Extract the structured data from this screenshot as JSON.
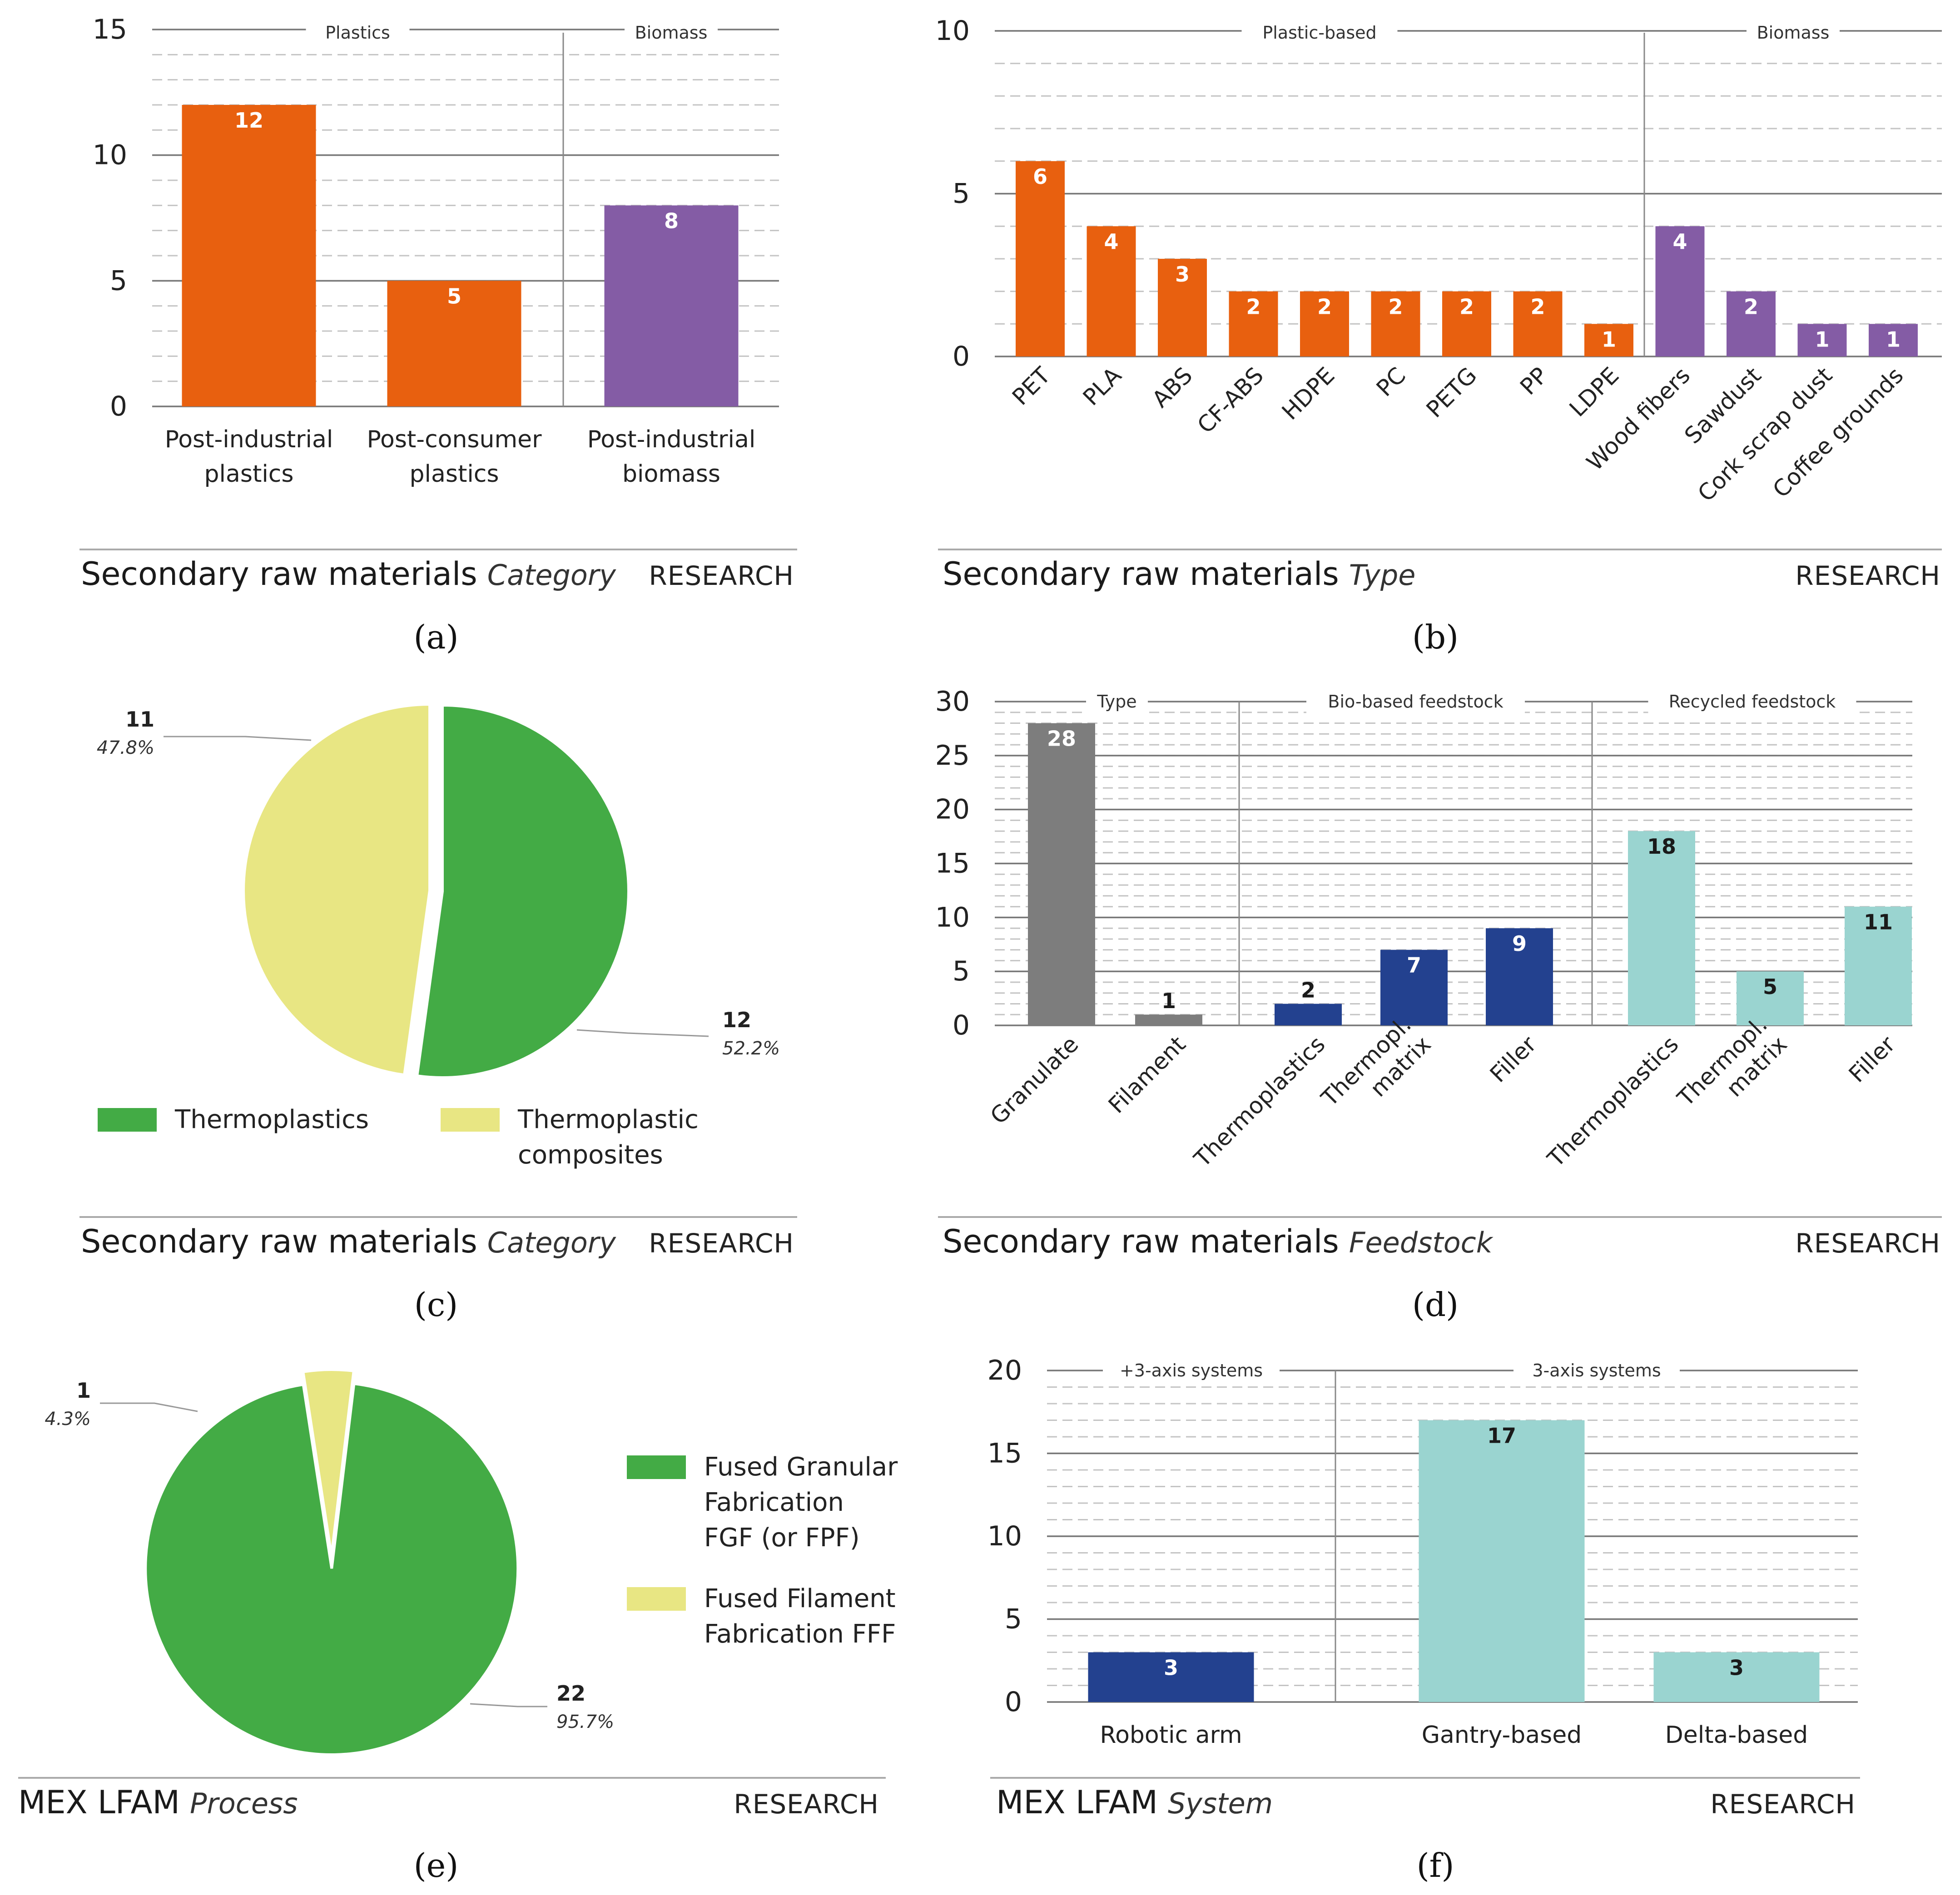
{
  "research_label": "RESEARCH",
  "panels": {
    "a": {
      "title": "Secondary raw materials",
      "subtitle": "Category",
      "label": "(a)"
    },
    "b": {
      "title": "Secondary raw materials",
      "subtitle": "Type",
      "label": "(b)"
    },
    "c": {
      "title": "Secondary raw materials",
      "subtitle": "Category",
      "label": "(c)"
    },
    "d": {
      "title": "Secondary raw materials",
      "subtitle": "Feedstock",
      "label": "(d)"
    },
    "e": {
      "title": "MEX LFAM",
      "subtitle": "Process",
      "label": "(e)"
    },
    "f": {
      "title": "MEX LFAM",
      "subtitle": "System",
      "label": "(f)"
    }
  },
  "colors": {
    "orange": "#e8600f",
    "purple": "#845ca5",
    "green": "#43ab45",
    "yellow": "#e8e683",
    "gray": "#7d7d7d",
    "navy": "#23418f",
    "teal": "#9ad4d0"
  },
  "chart_data": [
    {
      "id": "a",
      "type": "bar",
      "title": "Secondary raw materials Category",
      "ylim": [
        0,
        15
      ],
      "yticks": [
        "0",
        "5",
        "10",
        "15"
      ],
      "groups": [
        {
          "name": "Plastics",
          "span": [
            0,
            1
          ]
        },
        {
          "name": "Biomass",
          "span": [
            2,
            2
          ]
        }
      ],
      "categories": [
        {
          "lines": [
            "Post-industrial",
            "plastics"
          ],
          "value": 12,
          "label": "12",
          "color": "#e8600f"
        },
        {
          "lines": [
            "Post-consumer",
            "plastics"
          ],
          "value": 5,
          "label": "5",
          "color": "#e8600f"
        },
        {
          "lines": [
            "Post-industrial",
            "biomass"
          ],
          "value": 8,
          "label": "8",
          "color": "#845ca5"
        }
      ]
    },
    {
      "id": "b",
      "type": "bar",
      "title": "Secondary raw materials Type",
      "ylim": [
        0,
        10
      ],
      "yticks": [
        "0",
        "5",
        "10"
      ],
      "groups": [
        {
          "name": "Plastic-based",
          "span": [
            0,
            8
          ]
        },
        {
          "name": "Biomass",
          "span": [
            9,
            12
          ]
        }
      ],
      "categories": [
        {
          "lines": [
            "PET"
          ],
          "value": 6,
          "label": "6",
          "color": "#e8600f"
        },
        {
          "lines": [
            "PLA"
          ],
          "value": 4,
          "label": "4",
          "color": "#e8600f"
        },
        {
          "lines": [
            "ABS"
          ],
          "value": 3,
          "label": "3",
          "color": "#e8600f"
        },
        {
          "lines": [
            "CF-ABS"
          ],
          "value": 2,
          "label": "2",
          "color": "#e8600f"
        },
        {
          "lines": [
            "HDPE"
          ],
          "value": 2,
          "label": "2",
          "color": "#e8600f"
        },
        {
          "lines": [
            "PC"
          ],
          "value": 2,
          "label": "2",
          "color": "#e8600f"
        },
        {
          "lines": [
            "PETG"
          ],
          "value": 2,
          "label": "2",
          "color": "#e8600f"
        },
        {
          "lines": [
            "PP"
          ],
          "value": 2,
          "label": "2",
          "color": "#e8600f"
        },
        {
          "lines": [
            "LDPE"
          ],
          "value": 1,
          "label": "1",
          "color": "#e8600f"
        },
        {
          "lines": [
            "Wood fibers"
          ],
          "value": 4,
          "label": "4",
          "color": "#845ca5"
        },
        {
          "lines": [
            "Sawdust"
          ],
          "value": 2,
          "label": "2",
          "color": "#845ca5"
        },
        {
          "lines": [
            "Cork scrap dust"
          ],
          "value": 1,
          "label": "1",
          "color": "#845ca5"
        },
        {
          "lines": [
            "Coffee grounds"
          ],
          "value": 1,
          "label": "1",
          "color": "#845ca5"
        }
      ]
    },
    {
      "id": "c",
      "type": "pie",
      "title": "Secondary raw materials Category",
      "slices": [
        {
          "name": "Thermoplastics",
          "legend_lines": [
            "Thermoplastics"
          ],
          "value": 12,
          "count": "12",
          "percent": "52.2%",
          "color": "#43ab45"
        },
        {
          "name": "Thermoplastic composites",
          "legend_lines": [
            "Thermoplastic",
            "composites"
          ],
          "value": 11,
          "count": "11",
          "percent": "47.8%",
          "color": "#e8e683"
        }
      ]
    },
    {
      "id": "d",
      "type": "bar",
      "title": "Secondary raw materials Feedstock",
      "ylim": [
        0,
        30
      ],
      "yticks": [
        "0",
        "5",
        "10",
        "15",
        "20",
        "25",
        "30"
      ],
      "groups": [
        {
          "name": "Type",
          "span": [
            0,
            1
          ]
        },
        {
          "name": "Bio-based feedstock",
          "span": [
            2,
            4
          ]
        },
        {
          "name": "Recycled feedstock",
          "span": [
            5,
            7
          ]
        }
      ],
      "categories": [
        {
          "lines": [
            "Granulate"
          ],
          "value": 28,
          "label": "28",
          "color": "#7d7d7d"
        },
        {
          "lines": [
            "Filament"
          ],
          "value": 1,
          "label": "1",
          "color": "#7d7d7d"
        },
        {
          "lines": [
            "Thermoplastics"
          ],
          "value": 2,
          "label": "2",
          "color": "#23418f"
        },
        {
          "lines": [
            "Thermopl.",
            "matrix"
          ],
          "value": 7,
          "label": "7",
          "color": "#23418f"
        },
        {
          "lines": [
            "Filler"
          ],
          "value": 9,
          "label": "9",
          "color": "#23418f"
        },
        {
          "lines": [
            "Thermoplastics"
          ],
          "value": 18,
          "label": "18",
          "color": "#9ad4d0"
        },
        {
          "lines": [
            "Thermopl.",
            "matrix"
          ],
          "value": 5,
          "label": "5",
          "color": "#9ad4d0"
        },
        {
          "lines": [
            "Filler"
          ],
          "value": 11,
          "label": "11",
          "color": "#9ad4d0"
        }
      ]
    },
    {
      "id": "e",
      "type": "pie",
      "title": "MEX LFAM Process",
      "slices": [
        {
          "name": "Fused Granular Fabrication FGF (or FPF)",
          "legend_lines": [
            "Fused Granular",
            "Fabrication",
            "FGF (or FPF)"
          ],
          "value": 22,
          "count": "22",
          "percent": "95.7%",
          "color": "#43ab45"
        },
        {
          "name": "Fused Filament Fabrication FFF",
          "legend_lines": [
            "Fused Filament",
            "Fabrication FFF"
          ],
          "value": 1,
          "count": "1",
          "percent": "4.3%",
          "color": "#e8e683"
        }
      ]
    },
    {
      "id": "f",
      "type": "bar",
      "title": "MEX LFAM System",
      "ylim": [
        0,
        20
      ],
      "yticks": [
        "0",
        "5",
        "10",
        "15",
        "20"
      ],
      "groups": [
        {
          "name": "+3-axis systems",
          "span": [
            0,
            0
          ]
        },
        {
          "name": "3-axis systems",
          "span": [
            1,
            2
          ]
        }
      ],
      "categories": [
        {
          "lines": [
            "Robotic arm"
          ],
          "value": 3,
          "label": "3",
          "color": "#23418f"
        },
        {
          "lines": [
            "Gantry-based"
          ],
          "value": 17,
          "label": "17",
          "color": "#9ad4d0"
        },
        {
          "lines": [
            "Delta-based"
          ],
          "value": 3,
          "label": "3",
          "color": "#9ad4d0"
        }
      ]
    }
  ]
}
